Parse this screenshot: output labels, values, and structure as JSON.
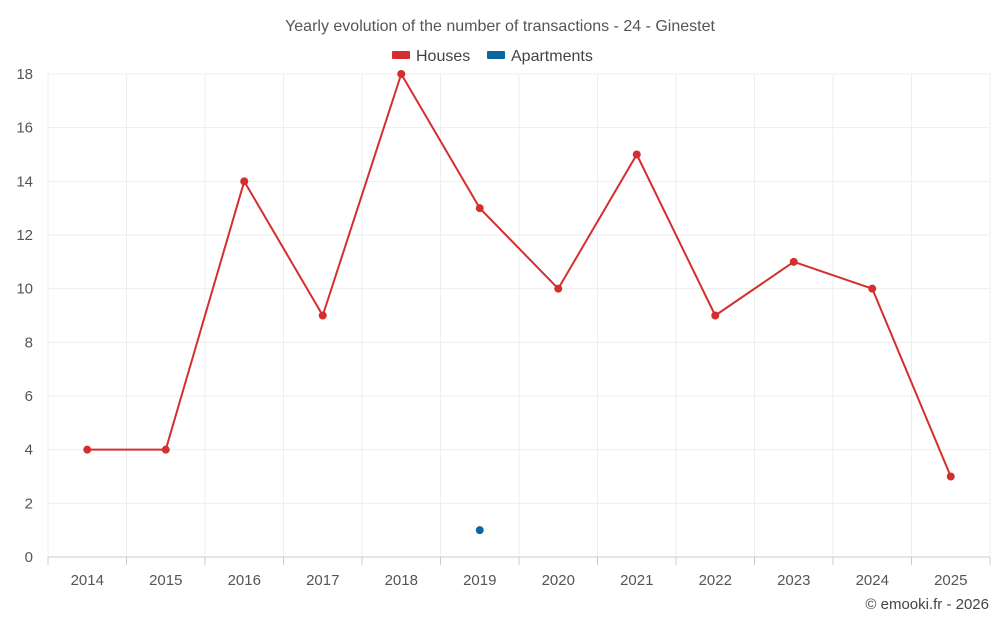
{
  "chart_data": {
    "type": "line",
    "title": "Yearly evolution of the number of transactions - 24 - Ginestet",
    "categories": [
      "2014",
      "2015",
      "2016",
      "2017",
      "2018",
      "2019",
      "2020",
      "2021",
      "2022",
      "2023",
      "2024",
      "2025"
    ],
    "series": [
      {
        "name": "Houses",
        "color": "#d32f2f",
        "values": [
          4,
          4,
          14,
          9,
          18,
          13,
          10,
          15,
          9,
          11,
          10,
          3
        ]
      },
      {
        "name": "Apartments",
        "color": "#0d66a1",
        "values": [
          null,
          null,
          null,
          null,
          null,
          1,
          null,
          null,
          null,
          null,
          null,
          null
        ]
      }
    ],
    "ylim": [
      0,
      18
    ],
    "yticks": [
      "0",
      "2",
      "4",
      "6",
      "8",
      "10",
      "12",
      "14",
      "16",
      "18"
    ],
    "grid": true,
    "legend": "top-center",
    "xlabel": "",
    "ylabel": ""
  },
  "credit": "© emooki.fr - 2026"
}
